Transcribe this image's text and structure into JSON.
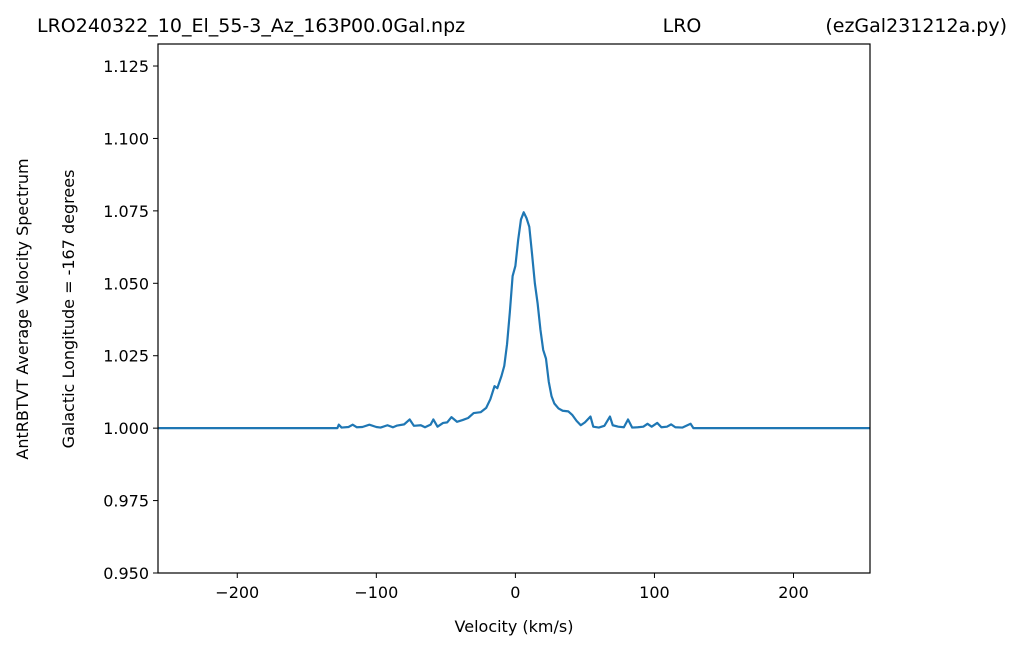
{
  "chart_data": {
    "type": "line",
    "title_left": "LRO240322_10_El_55-3_Az_163P00.0Gal.npz",
    "title_center": "LRO",
    "title_right": "(ezGal231212a.py)",
    "ylabel": "AntRBTVT Average Velocity Spectrum",
    "ylabel2": "Galactic Longitude = -167 degrees",
    "xlabel": "Velocity (km/s)",
    "color": "#1f77b4",
    "xlim": [
      -257,
      255
    ],
    "ylim": [
      0.95,
      1.1326
    ],
    "xticks": [
      {
        "value": -200,
        "label": "−200"
      },
      {
        "value": -100,
        "label": "−100"
      },
      0,
      100,
      200
    ],
    "yticks": [
      {
        "value": 0.95,
        "label": "0.950"
      },
      {
        "value": 0.975,
        "label": "0.975"
      },
      {
        "value": 1.0,
        "label": "1.000"
      },
      {
        "value": 1.025,
        "label": "1.025"
      },
      {
        "value": 1.05,
        "label": "1.050"
      },
      {
        "value": 1.075,
        "label": "1.075"
      },
      {
        "value": 1.1,
        "label": "1.100"
      },
      {
        "value": 1.125,
        "label": "1.125"
      }
    ],
    "x": [
      -257,
      -128,
      -127,
      -125,
      -120,
      -117,
      -114,
      -110,
      -105,
      -100,
      -97,
      -92,
      -88,
      -85,
      -80,
      -76,
      -73,
      -68,
      -65,
      -61,
      -59,
      -56,
      -52,
      -49,
      -46,
      -42,
      -38,
      -34,
      -30,
      -25,
      -21,
      -18,
      -15,
      -13,
      -10,
      -8,
      -6,
      -4,
      -2,
      0,
      2,
      4,
      6,
      8,
      10,
      12,
      14,
      16,
      18,
      20,
      22,
      24,
      26,
      28,
      31,
      34,
      38,
      41,
      44,
      47,
      50,
      54,
      56,
      60,
      64,
      68,
      70,
      74,
      78,
      81,
      84,
      88,
      92,
      95,
      98,
      102,
      105,
      109,
      112,
      115,
      120,
      126,
      128,
      255
    ],
    "values": [
      1.0,
      1.0,
      1.0012,
      1.0002,
      1.0004,
      1.0012,
      1.0003,
      1.0004,
      1.0012,
      1.0004,
      1.0002,
      1.001,
      1.0003,
      1.0009,
      1.0013,
      1.003,
      1.0008,
      1.001,
      1.0003,
      1.0012,
      1.003,
      1.0005,
      1.0018,
      1.002,
      1.0038,
      1.0022,
      1.0028,
      1.0035,
      1.0052,
      1.0055,
      1.007,
      1.01,
      1.0145,
      1.0138,
      1.018,
      1.0215,
      1.029,
      1.04,
      1.0525,
      1.056,
      1.065,
      1.072,
      1.0745,
      1.0725,
      1.0695,
      1.06,
      1.05,
      1.043,
      1.034,
      1.027,
      1.024,
      1.016,
      1.011,
      1.0085,
      1.0068,
      1.006,
      1.0058,
      1.0045,
      1.0025,
      1.001,
      1.002,
      1.004,
      1.0005,
      1.0002,
      1.0008,
      1.004,
      1.001,
      1.0005,
      1.0003,
      1.003,
      1.0002,
      1.0003,
      1.0005,
      1.0015,
      1.0005,
      1.0018,
      1.0003,
      1.0005,
      1.0013,
      1.0003,
      1.0002,
      1.0015,
      1.0,
      1.0
    ]
  }
}
